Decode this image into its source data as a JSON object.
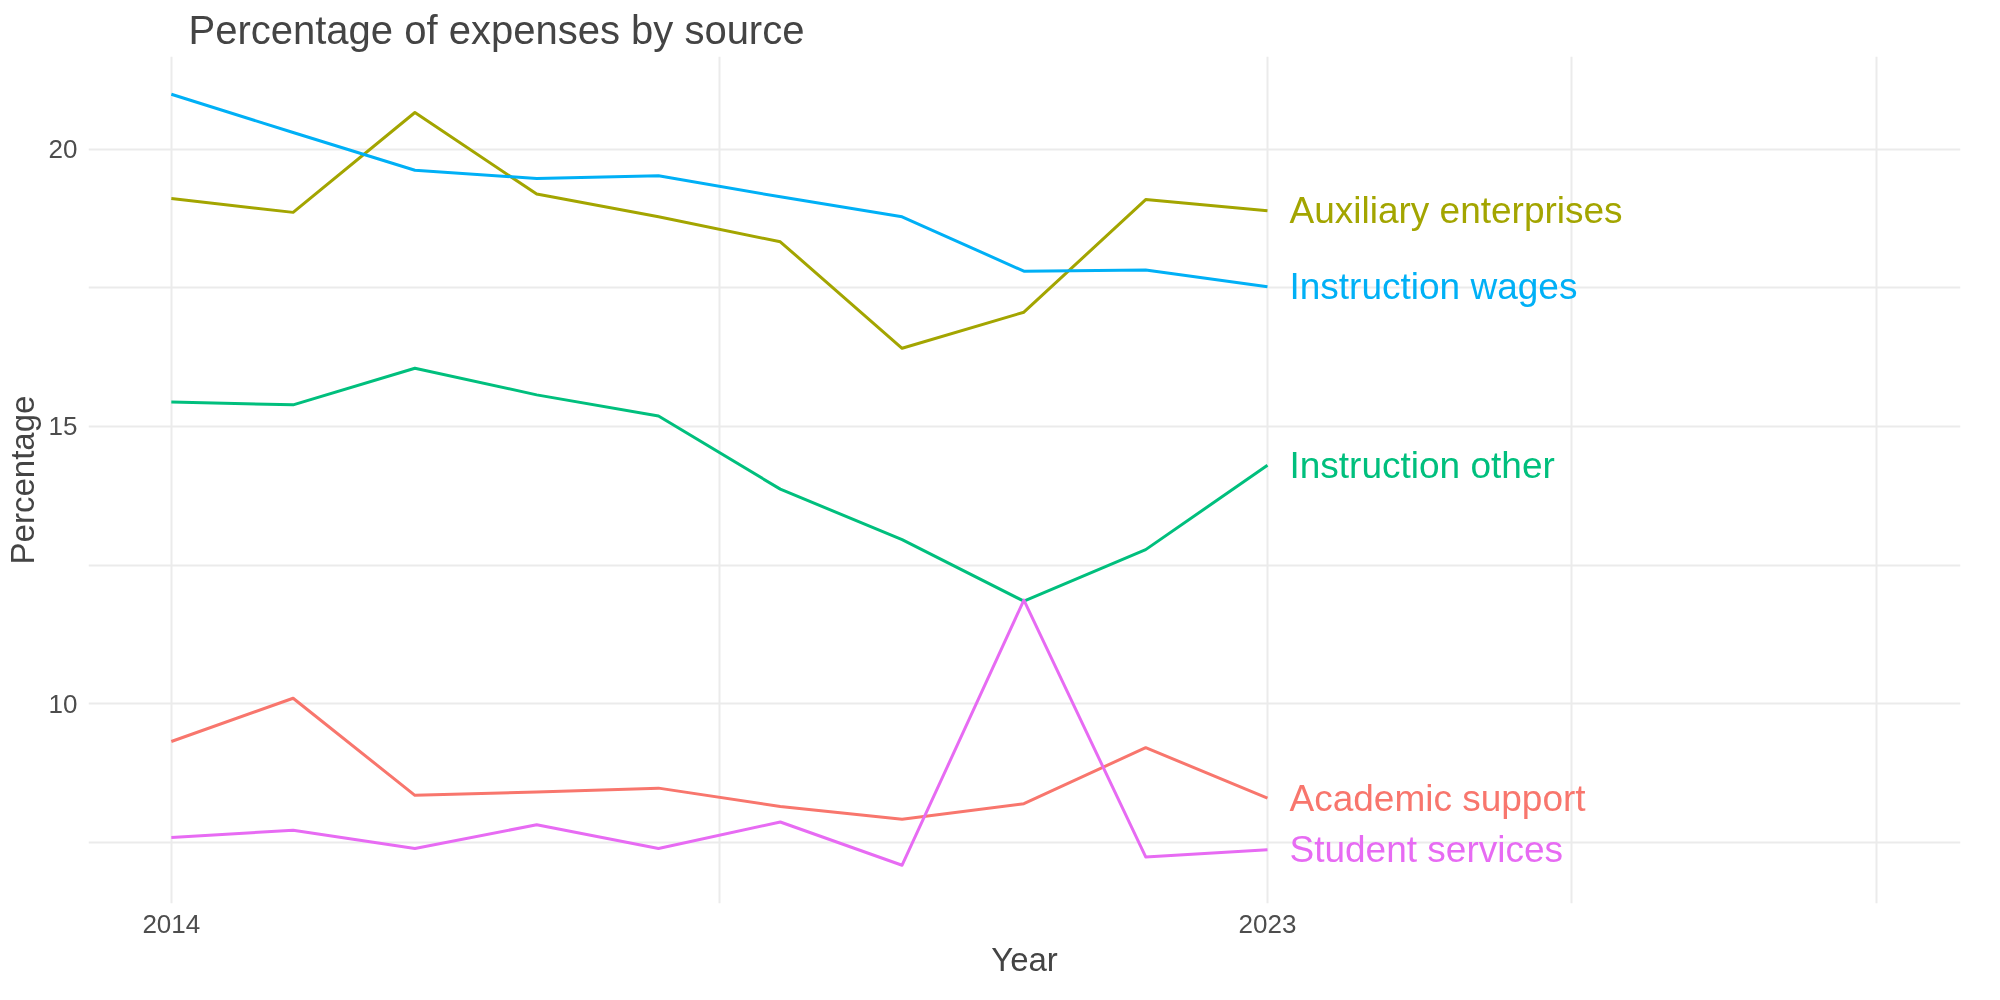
{
  "chart_data": {
    "type": "line",
    "title": "Percentage of expenses by source",
    "xlabel": "Year",
    "ylabel": "Percentage",
    "x": [
      2014,
      2015,
      2016,
      2017,
      2018,
      2019,
      2020,
      2021,
      2022,
      2023
    ],
    "series": [
      {
        "name": "Academic support",
        "color": "#f8766d",
        "values": [
          9.32,
          10.1,
          8.35,
          8.41,
          8.48,
          8.15,
          7.92,
          8.2,
          9.21,
          8.3
        ]
      },
      {
        "name": "Auxiliary enterprises",
        "color": "#a3a500",
        "values": [
          19.11,
          18.86,
          20.66,
          19.19,
          18.78,
          18.33,
          16.41,
          17.06,
          19.09,
          18.89
        ]
      },
      {
        "name": "Instruction other",
        "color": "#00bf7d",
        "values": [
          15.44,
          15.39,
          16.05,
          15.57,
          15.19,
          13.87,
          12.96,
          11.85,
          12.78,
          14.3
        ]
      },
      {
        "name": "Instruction wages",
        "color": "#00b0f6",
        "values": [
          20.99,
          20.3,
          19.62,
          19.47,
          19.52,
          19.14,
          18.78,
          17.8,
          17.82,
          17.52
        ]
      },
      {
        "name": "Student services",
        "color": "#e76bf3",
        "values": [
          7.59,
          7.72,
          7.39,
          7.82,
          7.39,
          7.87,
          7.09,
          11.87,
          7.24,
          7.37
        ]
      }
    ],
    "xlim": [
      2013.32,
      2028.69
    ],
    "ylim": [
      6.4,
      21.67
    ],
    "xticks": [
      2014,
      {
        "value": 2018.5,
        "label": null
      },
      2023,
      {
        "value": 2025.5,
        "label": null
      },
      {
        "value": 2028,
        "label": null
      }
    ],
    "yticks": [
      {
        "value": 7.5,
        "label": null
      },
      10,
      {
        "value": 12.5,
        "label": null
      },
      15,
      {
        "value": 17.5,
        "label": null
      },
      20
    ],
    "grid": true,
    "legend": false,
    "line_style": "solid",
    "marker": "none"
  }
}
